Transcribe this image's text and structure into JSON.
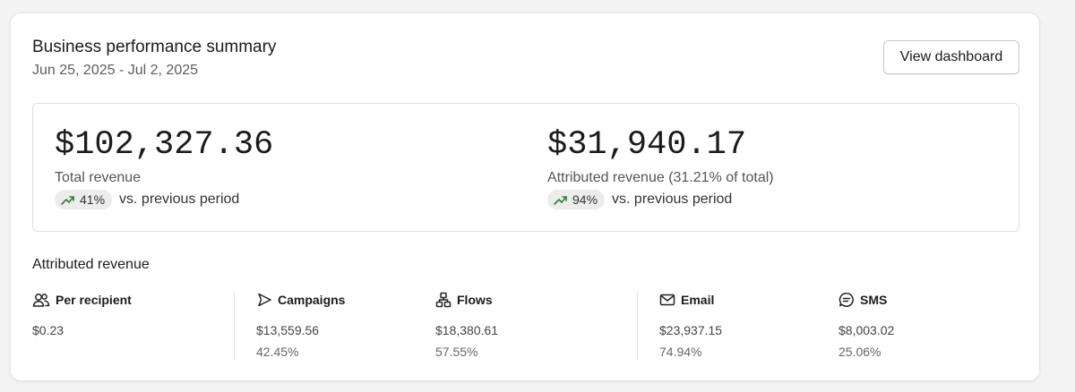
{
  "header": {
    "title": "Business performance summary",
    "date_range": "Jun 25, 2025 - Jul 2, 2025",
    "button_label": "View dashboard"
  },
  "summary": {
    "total": {
      "value": "$102,327.36",
      "label": "Total revenue",
      "change": "41%",
      "comparison": "vs. previous period"
    },
    "attributed": {
      "value": "$31,940.17",
      "label": "Attributed revenue (31.21% of total)",
      "change": "94%",
      "comparison": "vs. previous period"
    }
  },
  "attributed_section": {
    "title": "Attributed revenue",
    "items": [
      {
        "icon": "users-icon",
        "label": "Per recipient",
        "amount": "$0.23",
        "percent": ""
      },
      {
        "icon": "send-icon",
        "label": "Campaigns",
        "amount": "$13,559.56",
        "percent": "42.45%"
      },
      {
        "icon": "flow-icon",
        "label": "Flows",
        "amount": "$18,380.61",
        "percent": "57.55%"
      },
      {
        "icon": "mail-icon",
        "label": "Email",
        "amount": "$23,937.15",
        "percent": "74.94%"
      },
      {
        "icon": "chat-icon",
        "label": "SMS",
        "amount": "$8,003.02",
        "percent": "25.06%"
      }
    ]
  },
  "colors": {
    "trend_up": "#2e7d32",
    "pill_bg": "#ececec"
  }
}
